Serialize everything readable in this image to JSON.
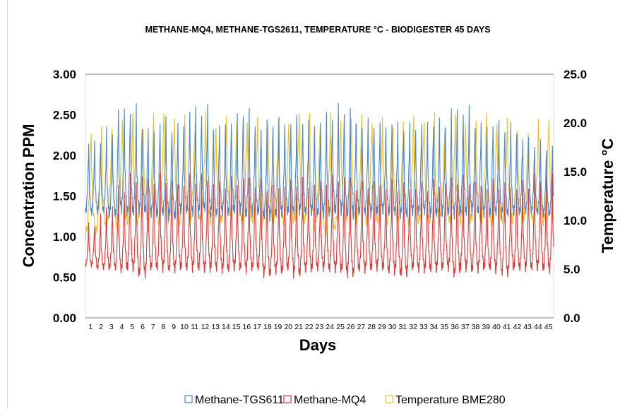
{
  "chart_data": {
    "type": "line",
    "title": "METHANE-MQ4, METHANE-TGS2611, TEMPERATURE °C - BIODIGESTER 45 DAYS",
    "xlabel": "Days",
    "ylabel": "Concentration PPM",
    "y2label": "Temperature °C",
    "x_categories": [
      1,
      2,
      3,
      4,
      5,
      6,
      7,
      8,
      9,
      10,
      11,
      12,
      13,
      14,
      15,
      16,
      17,
      18,
      19,
      20,
      21,
      22,
      23,
      24,
      25,
      26,
      27,
      28,
      29,
      30,
      31,
      32,
      33,
      34,
      35,
      36,
      37,
      38,
      39,
      40,
      41,
      42,
      43,
      44,
      45
    ],
    "x_tick_labels": [
      "1",
      "2",
      "3",
      "4",
      "5",
      "6",
      "7",
      "8",
      "9",
      "10",
      "11",
      "12",
      "13",
      "14",
      "15",
      "16",
      "17",
      "18",
      "19",
      "20",
      "21",
      "22",
      "23",
      "24",
      "25",
      "26",
      "27",
      "28",
      "29",
      "30",
      "31",
      "32",
      "33",
      "34",
      "35",
      "36",
      "37",
      "38",
      "39",
      "40",
      "41",
      "42",
      "43",
      "44",
      "45"
    ],
    "ylim": [
      0,
      3
    ],
    "yticks": [
      0.0,
      0.5,
      1.0,
      1.5,
      2.0,
      2.5,
      3.0
    ],
    "y_tick_labels": [
      "0.00",
      "0.50",
      "1.00",
      "1.50",
      "2.00",
      "2.50",
      "3.00"
    ],
    "y2lim": [
      0,
      25
    ],
    "y2ticks": [
      0,
      5,
      10,
      15,
      20,
      25
    ],
    "y2_tick_labels": [
      "0.0",
      "5.0",
      "10.0",
      "15.0",
      "20.0",
      "25.0"
    ],
    "grid": false,
    "legend_position": "bottom",
    "series": [
      {
        "name": "Methane-TGS611",
        "axis": "left",
        "color": "#4a86c8",
        "cycles_per_day": 1.75,
        "daily_min": [
          1.3,
          1.32,
          1.28,
          1.35,
          1.3,
          1.33,
          1.28,
          1.3,
          1.25,
          1.32,
          1.3,
          1.35,
          1.28,
          1.3,
          1.32,
          1.28,
          1.3,
          1.25,
          1.28,
          1.3,
          1.32,
          1.3,
          1.28,
          1.3,
          1.32,
          1.28,
          1.3,
          1.28,
          1.32,
          1.3,
          1.28,
          1.3,
          1.32,
          1.28,
          1.3,
          1.28,
          1.3,
          1.32,
          1.28,
          1.3,
          1.28,
          1.3,
          1.32,
          1.3,
          1.28
        ],
        "daily_max": [
          2.15,
          2.2,
          2.3,
          2.55,
          2.57,
          2.38,
          2.3,
          2.42,
          2.35,
          2.38,
          2.55,
          2.56,
          2.36,
          2.36,
          2.45,
          2.55,
          2.35,
          2.38,
          2.42,
          2.4,
          2.45,
          2.38,
          2.4,
          2.5,
          2.57,
          2.55,
          2.38,
          2.4,
          2.36,
          2.4,
          2.36,
          2.35,
          2.38,
          2.42,
          2.4,
          2.55,
          2.55,
          2.4,
          2.36,
          2.38,
          2.35,
          2.3,
          2.2,
          2.15,
          2.1
        ]
      },
      {
        "name": "Methane-MQ4",
        "axis": "left",
        "color": "#d93a3a",
        "cycles_per_day": 1.75,
        "daily_min": [
          0.65,
          0.62,
          0.62,
          0.6,
          0.62,
          0.55,
          0.62,
          0.62,
          0.6,
          0.62,
          0.62,
          0.6,
          0.62,
          0.6,
          0.62,
          0.6,
          0.62,
          0.55,
          0.58,
          0.62,
          0.55,
          0.6,
          0.62,
          0.6,
          0.6,
          0.55,
          0.6,
          0.62,
          0.62,
          0.58,
          0.55,
          0.62,
          0.6,
          0.6,
          0.62,
          0.55,
          0.62,
          0.6,
          0.62,
          0.6,
          0.55,
          0.62,
          0.62,
          0.62,
          0.6
        ],
        "daily_max": [
          1.15,
          1.25,
          1.38,
          1.6,
          1.72,
          1.72,
          1.7,
          1.72,
          1.65,
          1.65,
          1.72,
          1.72,
          1.65,
          1.65,
          1.68,
          1.7,
          1.65,
          1.62,
          1.6,
          1.65,
          1.68,
          1.62,
          1.65,
          1.7,
          1.72,
          1.7,
          1.62,
          1.65,
          1.62,
          1.65,
          1.62,
          1.6,
          1.62,
          1.65,
          1.65,
          1.7,
          1.7,
          1.65,
          1.62,
          1.65,
          1.62,
          1.6,
          1.65,
          1.72,
          1.75
        ]
      },
      {
        "name": "Temperature BME280",
        "axis": "right",
        "color": "#f0c020",
        "cycles_per_day": 1.0,
        "daily_min": [
          8.5,
          9.0,
          9.5,
          10.0,
          10.0,
          10.0,
          10.0,
          10.0,
          10.5,
          10.0,
          10.0,
          10.0,
          10.0,
          10.0,
          10.5,
          10.0,
          10.0,
          10.0,
          10.0,
          10.0,
          10.0,
          10.0,
          9.5,
          8.5,
          9.5,
          10.0,
          10.0,
          10.0,
          10.0,
          10.0,
          10.0,
          10.0,
          10.0,
          10.0,
          10.0,
          10.0,
          10.0,
          10.0,
          10.0,
          10.0,
          10.0,
          10.0,
          10.0,
          10.0,
          10.0
        ],
        "daily_max": [
          19.5,
          19.2,
          19.5,
          20.5,
          20.5,
          20.0,
          20.5,
          21.3,
          20.5,
          20.5,
          20.5,
          20.5,
          20.0,
          20.5,
          20.0,
          20.5,
          20.0,
          20.5,
          20.0,
          20.0,
          21.3,
          20.5,
          20.0,
          20.5,
          20.5,
          20.5,
          20.5,
          20.5,
          20.0,
          20.0,
          20.0,
          20.5,
          20.5,
          20.5,
          20.0,
          20.5,
          20.0,
          20.5,
          20.5,
          20.5,
          20.0,
          19.5,
          19.0,
          20.0,
          21.0
        ]
      }
    ]
  }
}
